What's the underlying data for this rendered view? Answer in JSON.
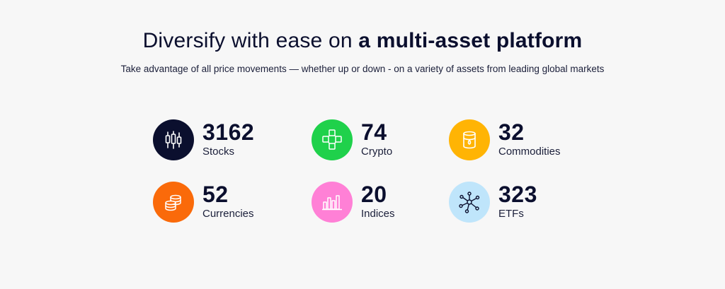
{
  "header": {
    "title_light": "Diversify with ease on ",
    "title_bold": "a multi-asset platform",
    "subtitle": "Take advantage of all price movements — whether up or down - on a variety of assets from leading global markets"
  },
  "stats": [
    {
      "count": "3162",
      "label": "Stocks",
      "icon": "candlestick-icon",
      "color": "#0b0f2e"
    },
    {
      "count": "74",
      "label": "Crypto",
      "icon": "blockchain-icon",
      "color": "#1fd14b"
    },
    {
      "count": "32",
      "label": "Commodities",
      "icon": "oil-barrel-icon",
      "color": "#ffb404"
    },
    {
      "count": "52",
      "label": "Currencies",
      "icon": "coin-stack-icon",
      "color": "#fa6a0a"
    },
    {
      "count": "20",
      "label": "Indices",
      "icon": "bar-chart-icon",
      "color": "#ff80d6"
    },
    {
      "count": "323",
      "label": "ETFs",
      "icon": "network-icon",
      "color": "#bfe5fb"
    }
  ]
}
